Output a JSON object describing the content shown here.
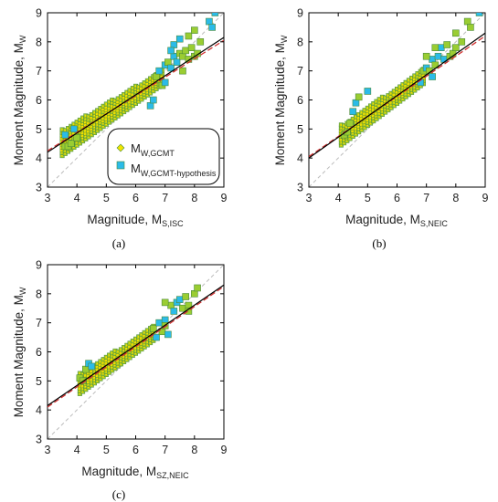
{
  "panels": [
    {
      "id": "a",
      "label": "(a)",
      "xlabel_main": "Magnitude, M",
      "xlabel_sub": "S,ISC",
      "ylabel_main": "Moment Magnitude, M",
      "ylabel_sub": "W",
      "legend": [
        {
          "main": "M",
          "sub": "W,GCMT",
          "marker": "diamond",
          "color": "#f2e600"
        },
        {
          "main": "M",
          "sub": "W,GCMT-hypothesis",
          "marker": "square",
          "color": "#2bbbe8"
        }
      ]
    },
    {
      "id": "b",
      "label": "(b)",
      "xlabel_main": "Magnitude, M",
      "xlabel_sub": "S,NEIC",
      "ylabel_main": "Moment Magnitude, M",
      "ylabel_sub": "W"
    },
    {
      "id": "c",
      "label": "(c)",
      "xlabel_main": "Magnitude, M",
      "xlabel_sub": "SZ,NEIC",
      "ylabel_main": "Moment Magnitude, M",
      "ylabel_sub": "W"
    }
  ],
  "colors": {
    "gcmt_fill": "#f2e600",
    "hypothesis_fill": "#2bbbe8",
    "hypothesis_overlap_fill": "#9acd32",
    "marker_edge": "#4a8a3a",
    "fit_line": "#000000",
    "reference_line": "#d03030",
    "one_to_one_line": "#bbbbbb"
  },
  "chart_data": [
    {
      "panel": "a",
      "type": "scatter",
      "xlabel": "Magnitude, M S,ISC",
      "ylabel": "Moment Magnitude, M W",
      "xlim": [
        3,
        9
      ],
      "ylim": [
        3,
        9
      ],
      "xticks": [
        3,
        4,
        5,
        6,
        7,
        8,
        9
      ],
      "yticks": [
        3,
        4,
        5,
        6,
        7,
        8,
        9
      ],
      "grid": false,
      "legend_position": "bottom-right",
      "lines": [
        {
          "role": "fit",
          "x": [
            3,
            9
          ],
          "y": [
            4.2,
            8.15
          ]
        },
        {
          "role": "reference",
          "x": [
            3,
            9
          ],
          "y": [
            4.25,
            8.05
          ]
        },
        {
          "role": "one-to-one",
          "x": [
            3,
            9
          ],
          "y": [
            3,
            9
          ]
        }
      ],
      "band": {
        "x_min": 3.5,
        "x_max": 6.9,
        "step": 0.1,
        "intercept": 4.2,
        "slope": 0.66,
        "half_width_low_x": 0.45,
        "half_width_high_x": 0.25
      },
      "series": [
        {
          "name": "M W,GCMT",
          "marker": "diamond",
          "points": []
        },
        {
          "name": "M W,GCMT-hypothesis",
          "marker": "square",
          "points": [
            [
              3.6,
              4.4
            ],
            [
              3.7,
              4.4
            ],
            [
              3.8,
              4.5
            ],
            [
              3.6,
              4.8
            ],
            [
              3.9,
              5.0
            ],
            [
              4.0,
              4.7
            ],
            [
              6.5,
              5.8
            ],
            [
              6.6,
              6.0
            ],
            [
              6.7,
              6.8
            ],
            [
              6.8,
              7.0
            ],
            [
              6.9,
              6.5
            ],
            [
              7.0,
              7.2
            ],
            [
              7.1,
              7.3
            ],
            [
              7.2,
              7.1
            ],
            [
              7.3,
              7.5
            ],
            [
              7.4,
              7.3
            ],
            [
              7.5,
              7.6
            ],
            [
              7.6,
              7.5
            ],
            [
              7.7,
              7.7
            ],
            [
              7.8,
              7.4
            ],
            [
              7.9,
              7.8
            ],
            [
              8.0,
              7.5
            ],
            [
              8.1,
              7.6
            ],
            [
              7.3,
              7.9
            ],
            [
              7.5,
              8.1
            ],
            [
              7.8,
              8.2
            ],
            [
              8.0,
              8.4
            ],
            [
              8.2,
              8.0
            ],
            [
              8.5,
              8.7
            ],
            [
              8.6,
              8.5
            ],
            [
              8.7,
              9.0
            ],
            [
              7.6,
              7.0
            ],
            [
              7.0,
              6.6
            ],
            [
              7.2,
              7.7
            ]
          ]
        }
      ]
    },
    {
      "panel": "b",
      "type": "scatter",
      "xlabel": "Magnitude, M S,NEIC",
      "ylabel": "Moment Magnitude, M W",
      "xlim": [
        3,
        9
      ],
      "ylim": [
        3,
        9
      ],
      "xticks": [
        3,
        4,
        5,
        6,
        7,
        8,
        9
      ],
      "yticks": [
        3,
        4,
        5,
        6,
        7,
        8,
        9
      ],
      "grid": false,
      "lines": [
        {
          "role": "fit",
          "x": [
            3,
            9
          ],
          "y": [
            4.0,
            8.3
          ]
        },
        {
          "role": "reference",
          "x": [
            3,
            9
          ],
          "y": [
            4.05,
            8.2
          ]
        },
        {
          "role": "one-to-one",
          "x": [
            3,
            9
          ],
          "y": [
            3,
            9
          ]
        }
      ],
      "band": {
        "x_min": 4.1,
        "x_max": 6.9,
        "step": 0.1,
        "intercept": 4.0,
        "slope": 0.72,
        "half_width_low_x": 0.35,
        "half_width_high_x": 0.25
      },
      "series": [
        {
          "name": "M W,GCMT-hypothesis",
          "marker": "square",
          "points": [
            [
              4.2,
              4.8
            ],
            [
              4.3,
              4.9
            ],
            [
              4.4,
              5.2
            ],
            [
              4.5,
              5.6
            ],
            [
              4.6,
              5.9
            ],
            [
              4.7,
              6.1
            ],
            [
              5.0,
              6.3
            ],
            [
              6.8,
              6.6
            ],
            [
              6.9,
              7.0
            ],
            [
              7.0,
              7.1
            ],
            [
              7.1,
              7.0
            ],
            [
              7.2,
              7.4
            ],
            [
              7.3,
              7.2
            ],
            [
              7.4,
              7.5
            ],
            [
              7.5,
              7.8
            ],
            [
              7.6,
              7.4
            ],
            [
              7.7,
              7.9
            ],
            [
              7.8,
              7.5
            ],
            [
              7.9,
              7.6
            ],
            [
              8.0,
              7.8
            ],
            [
              8.2,
              8.0
            ],
            [
              8.4,
              8.7
            ],
            [
              8.5,
              8.5
            ],
            [
              8.8,
              9.0
            ],
            [
              7.2,
              6.8
            ],
            [
              7.0,
              7.5
            ],
            [
              7.3,
              7.8
            ],
            [
              8.0,
              8.3
            ]
          ]
        }
      ]
    },
    {
      "panel": "c",
      "type": "scatter",
      "xlabel": "Magnitude, M SZ,NEIC",
      "ylabel": "Moment Magnitude, M W",
      "xlim": [
        3,
        9
      ],
      "ylim": [
        3,
        9
      ],
      "xticks": [
        3,
        4,
        5,
        6,
        7,
        8,
        9
      ],
      "yticks": [
        3,
        4,
        5,
        6,
        7,
        8,
        9
      ],
      "grid": false,
      "lines": [
        {
          "role": "fit",
          "x": [
            3,
            9
          ],
          "y": [
            4.15,
            8.3
          ]
        },
        {
          "role": "reference",
          "x": [
            3,
            9
          ],
          "y": [
            4.1,
            8.25
          ]
        },
        {
          "role": "one-to-one",
          "x": [
            3,
            9
          ],
          "y": [
            3,
            9
          ]
        }
      ],
      "band": {
        "x_min": 4.1,
        "x_max": 6.6,
        "step": 0.1,
        "intercept": 4.15,
        "slope": 0.69,
        "half_width_low_x": 0.35,
        "half_width_high_x": 0.25
      },
      "series": [
        {
          "name": "M W,GCMT-hypothesis",
          "marker": "square",
          "points": [
            [
              4.1,
              5.1
            ],
            [
              4.2,
              5.0
            ],
            [
              4.3,
              5.4
            ],
            [
              4.4,
              5.6
            ],
            [
              4.5,
              5.5
            ],
            [
              6.6,
              6.8
            ],
            [
              6.7,
              6.5
            ],
            [
              6.8,
              7.0
            ],
            [
              6.9,
              6.7
            ],
            [
              7.0,
              7.1
            ],
            [
              7.0,
              6.9
            ],
            [
              7.1,
              6.6
            ],
            [
              7.2,
              7.6
            ],
            [
              7.3,
              7.4
            ],
            [
              7.4,
              7.7
            ],
            [
              7.5,
              7.8
            ],
            [
              7.6,
              7.5
            ],
            [
              7.7,
              7.9
            ],
            [
              7.8,
              7.6
            ],
            [
              8.0,
              8.0
            ],
            [
              8.1,
              8.2
            ],
            [
              7.8,
              7.4
            ],
            [
              7.0,
              7.7
            ]
          ]
        }
      ]
    }
  ]
}
